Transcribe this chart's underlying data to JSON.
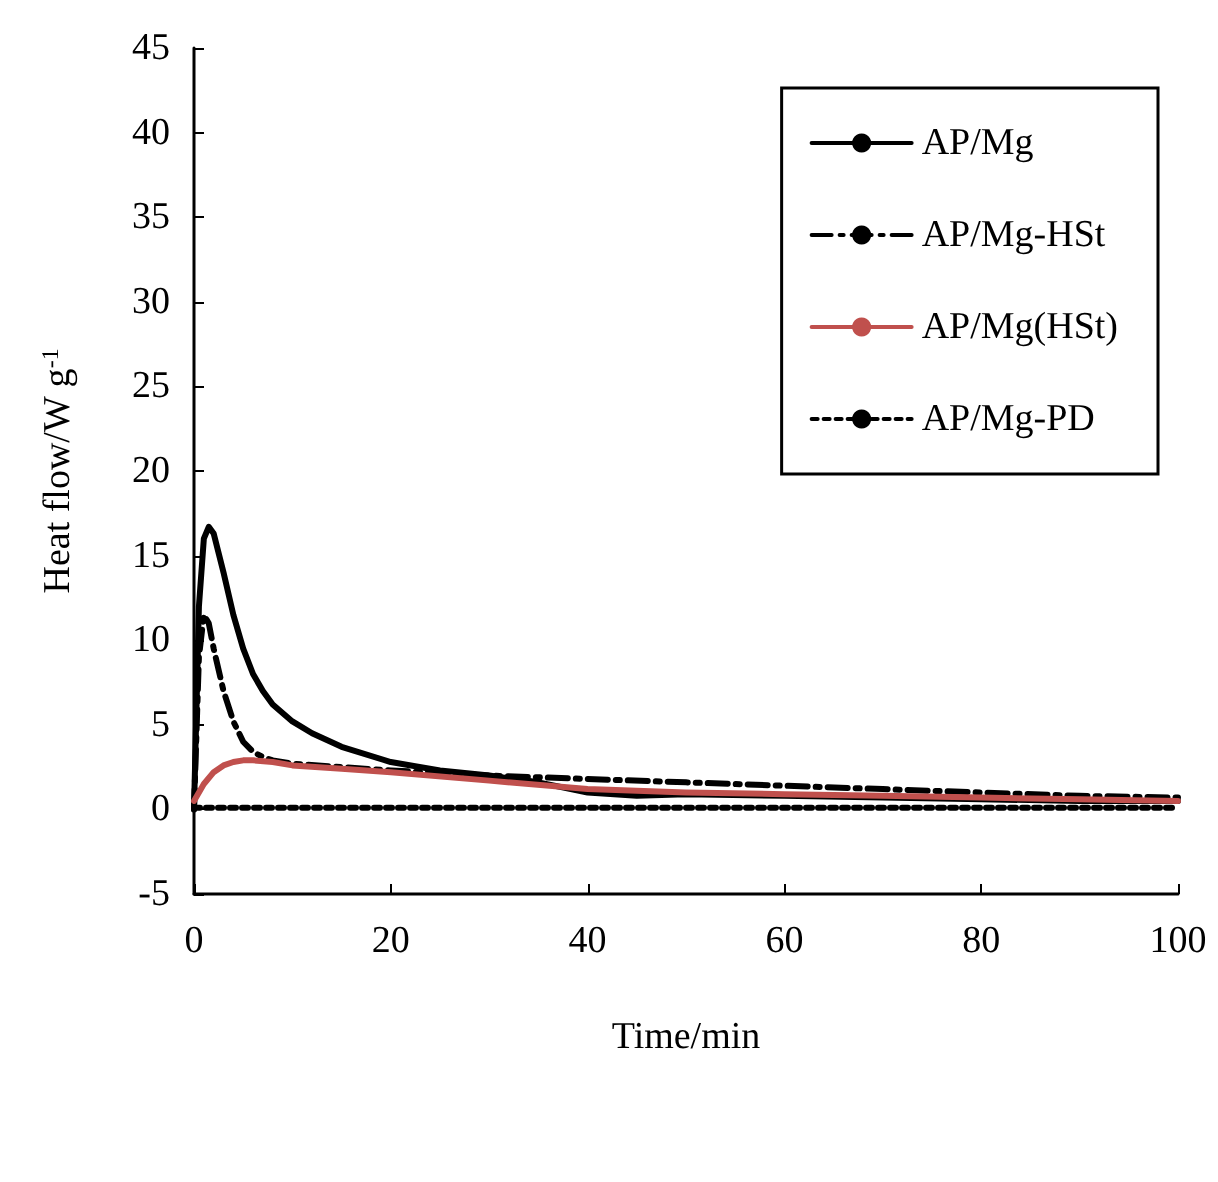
{
  "chart_data": {
    "type": "line",
    "xlabel": "Time/min",
    "ylabel": "Heat flow/W g$^{-1}$",
    "xlim": [
      0,
      100
    ],
    "xticks": [
      0,
      20,
      40,
      60,
      80,
      100
    ],
    "ylim": [
      -5,
      45
    ],
    "yticks": [
      -5,
      0,
      5,
      10,
      15,
      20,
      25,
      30,
      35,
      40,
      45
    ],
    "grid": false,
    "legend": "top right",
    "marker": "none",
    "series": [
      {
        "name": "AP/Mg",
        "color": "#000000",
        "line_style": "solid",
        "x": [
          0,
          0.5,
          1,
          1.5,
          2,
          3,
          4,
          5,
          6,
          7,
          8,
          10,
          12,
          15,
          20,
          25,
          30,
          35,
          40,
          45,
          50,
          60,
          70,
          80,
          90,
          100
        ],
        "values": [
          0,
          12,
          16,
          16.7,
          16.3,
          14,
          11.5,
          9.5,
          8,
          7,
          6.2,
          5.2,
          4.5,
          3.7,
          2.8,
          2.3,
          2.0,
          1.6,
          1.0,
          0.8,
          0.9,
          0.8,
          0.7,
          0.6,
          0.5,
          0.5
        ]
      },
      {
        "name": "AP/Mg-HSt",
        "color": "#000000",
        "line_style": "dashdot",
        "x": [
          0,
          0.5,
          1,
          1.5,
          2,
          3,
          4,
          5,
          6,
          7,
          8,
          10,
          15,
          20,
          30,
          40,
          50,
          60,
          70,
          80,
          90,
          100
        ],
        "values": [
          0,
          9,
          11.5,
          11,
          9.5,
          7,
          5.2,
          4,
          3.4,
          3.1,
          2.9,
          2.7,
          2.5,
          2.3,
          2.0,
          1.8,
          1.6,
          1.4,
          1.2,
          1.0,
          0.8,
          0.7
        ]
      },
      {
        "name": "AP/Mg(HSt)",
        "color": "#c0504d",
        "line_style": "solid",
        "x": [
          0,
          1,
          2,
          3,
          4,
          5,
          6,
          8,
          10,
          15,
          20,
          30,
          40,
          50,
          60,
          70,
          80,
          90,
          100
        ],
        "values": [
          0.5,
          1.5,
          2.2,
          2.6,
          2.8,
          2.9,
          2.9,
          2.8,
          2.6,
          2.4,
          2.2,
          1.7,
          1.2,
          1.0,
          0.9,
          0.8,
          0.7,
          0.6,
          0.5
        ]
      },
      {
        "name": "AP/Mg-PD",
        "color": "#000000",
        "line_style": "dotted",
        "x": [
          0,
          20,
          40,
          60,
          80,
          100
        ],
        "values": [
          0.1,
          0.1,
          0.1,
          0.1,
          0.1,
          0.1
        ]
      }
    ]
  }
}
